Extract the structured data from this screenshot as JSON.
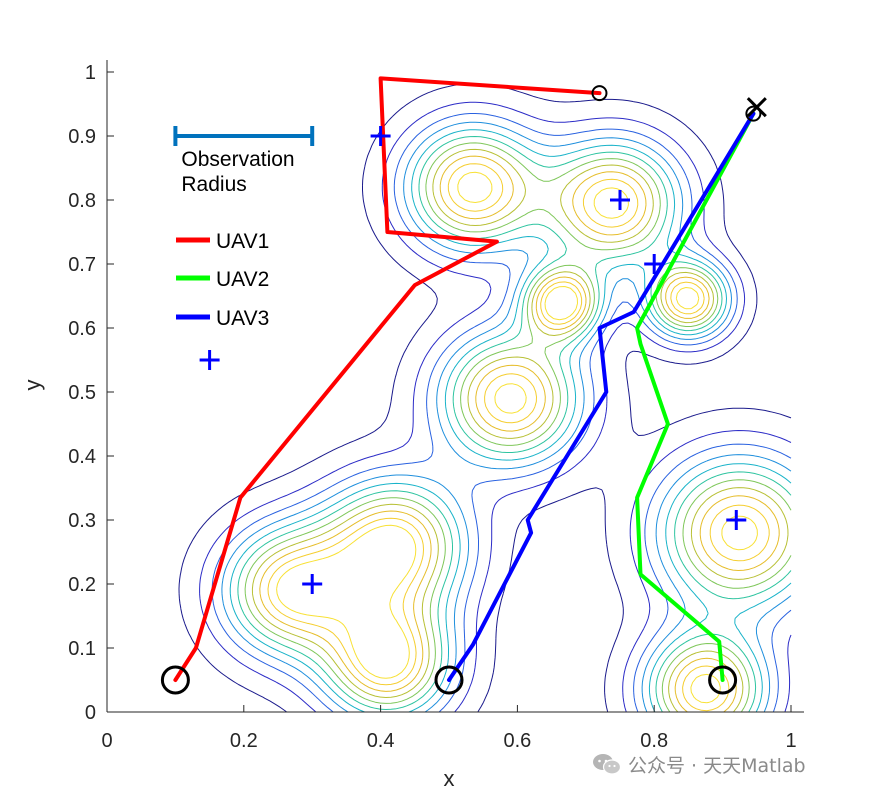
{
  "chart_data": {
    "type": "line",
    "xlabel": "x",
    "ylabel": "y",
    "xlim": [
      0,
      1
    ],
    "ylim": [
      0,
      1
    ],
    "xticks": [
      "0",
      "0.2",
      "0.4",
      "0.6",
      "0.8",
      "1"
    ],
    "yticks": [
      "0",
      "0.1",
      "0.2",
      "0.3",
      "0.4",
      "0.5",
      "0.6",
      "0.7",
      "0.8",
      "0.9",
      "1"
    ],
    "grid": false,
    "legend_placement": "upper-left",
    "annotation": {
      "lines": [
        "Observation",
        "Radius"
      ],
      "bar_x": [
        0.1,
        0.3
      ],
      "bar_y": 0.9,
      "color": "#0072BD"
    },
    "series": [
      {
        "name": "UAV1",
        "color": "#ff0000",
        "x": [
          0.1,
          0.13,
          0.195,
          0.45,
          0.57,
          0.41,
          0.4,
          0.72
        ],
        "y": [
          0.05,
          0.1,
          0.335,
          0.667,
          0.735,
          0.75,
          0.99,
          0.967
        ]
      },
      {
        "name": "UAV2",
        "color": "#00ff00",
        "x": [
          0.9,
          0.895,
          0.78,
          0.775,
          0.82,
          0.78,
          0.775,
          0.945
        ],
        "y": [
          0.05,
          0.11,
          0.215,
          0.335,
          0.45,
          0.575,
          0.6,
          0.935
        ]
      },
      {
        "name": "UAV3",
        "color": "#0000ff",
        "x": [
          0.5,
          0.535,
          0.62,
          0.615,
          0.73,
          0.72,
          0.77,
          0.945
        ],
        "y": [
          0.05,
          0.105,
          0.28,
          0.3,
          0.5,
          0.6,
          0.625,
          0.935
        ]
      }
    ],
    "start_markers": [
      {
        "x": 0.1,
        "y": 0.05
      },
      {
        "x": 0.5,
        "y": 0.05
      },
      {
        "x": 0.9,
        "y": 0.05
      }
    ],
    "goal_markers": [
      {
        "x": 0.72,
        "y": 0.967
      },
      {
        "x": 0.945,
        "y": 0.935
      }
    ],
    "cross_marker": {
      "x": 0.95,
      "y": 0.945
    },
    "targets": [
      {
        "x": 0.4,
        "y": 0.9
      },
      {
        "x": 0.75,
        "y": 0.8
      },
      {
        "x": 0.8,
        "y": 0.7
      },
      {
        "x": 0.15,
        "y": 0.55
      },
      {
        "x": 0.92,
        "y": 0.3
      },
      {
        "x": 0.3,
        "y": 0.2
      }
    ],
    "contour_peaks": [
      {
        "x": 0.535,
        "y": 0.82,
        "s": 0.068,
        "a": 1.0
      },
      {
        "x": 0.74,
        "y": 0.795,
        "s": 0.068,
        "a": 1.0
      },
      {
        "x": 0.665,
        "y": 0.64,
        "s": 0.04,
        "a": 1.0
      },
      {
        "x": 0.85,
        "y": 0.645,
        "s": 0.042,
        "a": 1.0
      },
      {
        "x": 0.59,
        "y": 0.49,
        "s": 0.072,
        "a": 1.0
      },
      {
        "x": 0.42,
        "y": 0.26,
        "s": 0.072,
        "a": 1.0
      },
      {
        "x": 0.27,
        "y": 0.19,
        "s": 0.07,
        "a": 0.95
      },
      {
        "x": 0.41,
        "y": 0.08,
        "s": 0.065,
        "a": 1.0
      },
      {
        "x": 0.925,
        "y": 0.28,
        "s": 0.082,
        "a": 1.0
      },
      {
        "x": 0.875,
        "y": 0.035,
        "s": 0.062,
        "a": 1.0
      }
    ]
  },
  "watermark": {
    "text": "公众号 · 天天Matlab"
  }
}
